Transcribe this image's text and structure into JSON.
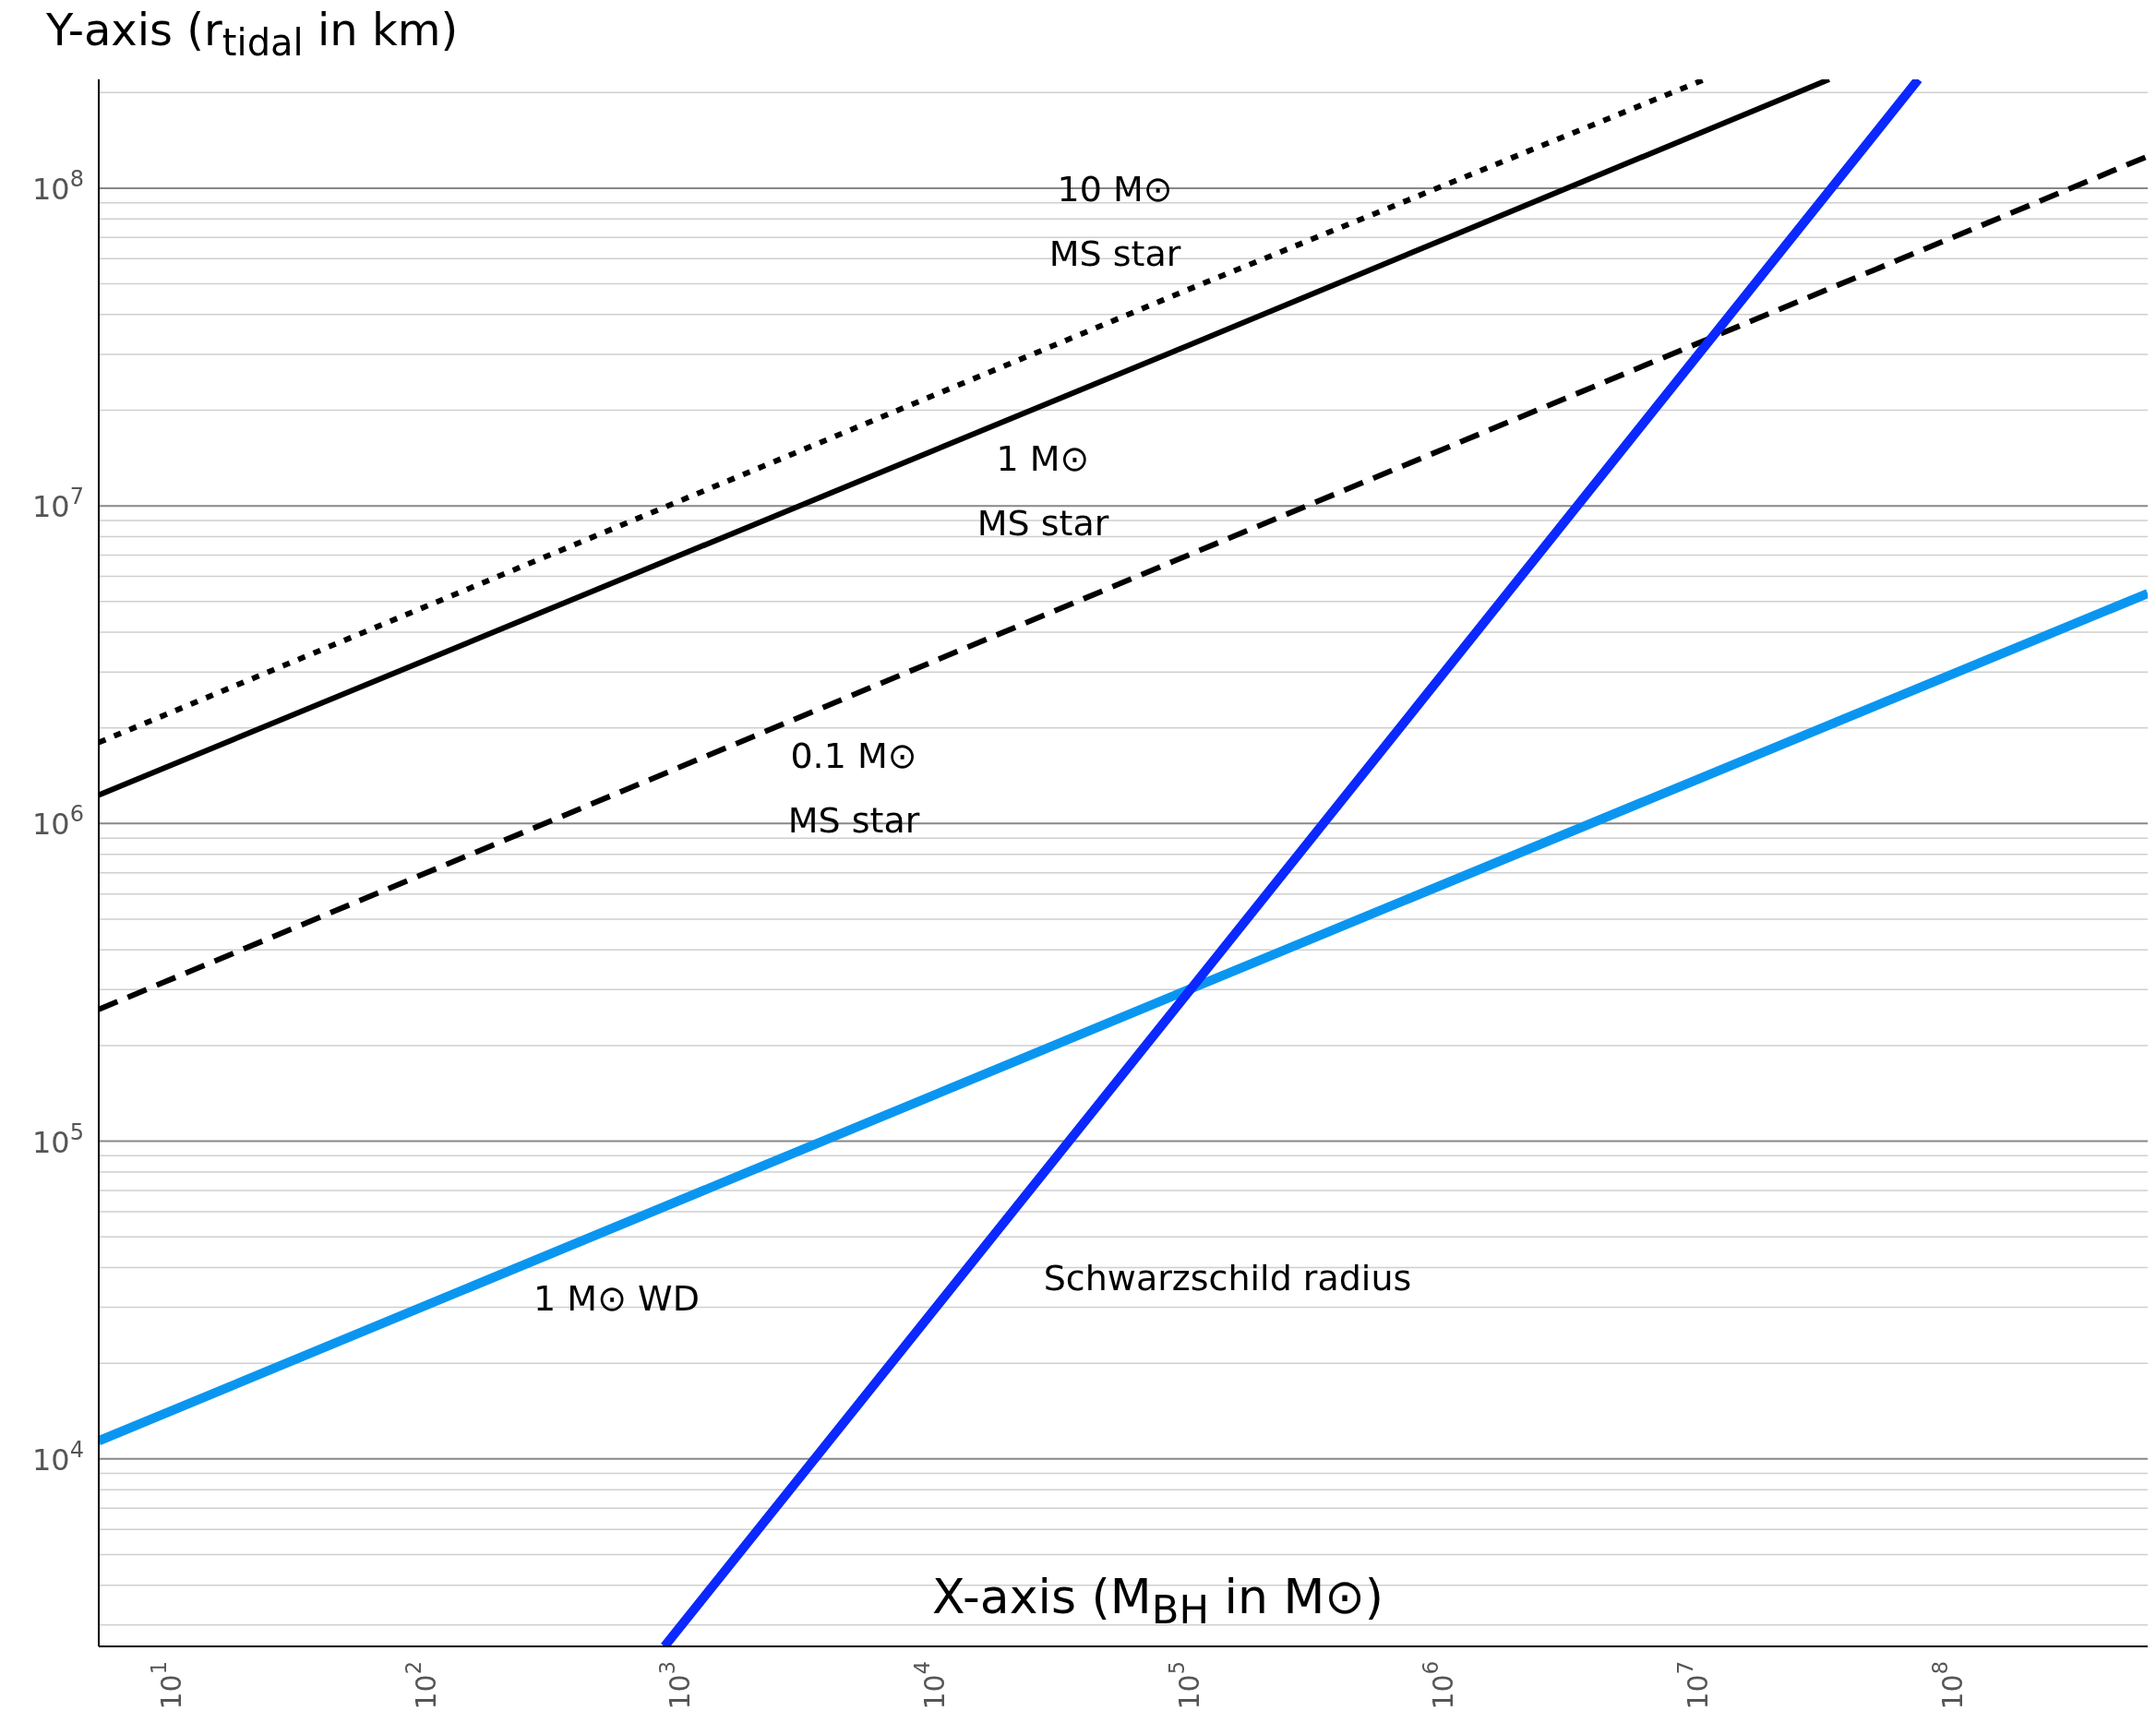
{
  "chart_data": {
    "type": "line",
    "xlabel": "X-axis (M$_{BH}$ in M⊙)",
    "ylabel": "Y-axis (r$_{tidal}$ in km)",
    "log": "xy",
    "grid": "y",
    "xlim": [
      5.2,
      590000000.0
    ],
    "ylim": [
      2570,
      220000000.0
    ],
    "xticks": [
      {
        "value": 10,
        "label": "10$^{1}$"
      },
      {
        "value": 100,
        "label": "10$^{2}$"
      },
      {
        "value": 1000,
        "label": "10$^{3}$"
      },
      {
        "value": 10000,
        "label": "10$^{4}$"
      },
      {
        "value": 100000,
        "label": "10$^{5}$"
      },
      {
        "value": 1000000,
        "label": "10$^{6}$"
      },
      {
        "value": 10000000,
        "label": "10$^{7}$"
      },
      {
        "value": 100000000,
        "label": "10$^{8}$"
      }
    ],
    "yticks": [
      {
        "value": 3000,
        "label": null
      },
      {
        "value": 4000,
        "label": null
      },
      {
        "value": 5000,
        "label": null
      },
      {
        "value": 6000,
        "label": null
      },
      {
        "value": 7000,
        "label": null
      },
      {
        "value": 8000,
        "label": null
      },
      {
        "value": 9000,
        "label": null
      },
      {
        "value": 10000,
        "label": "10$^{4}$"
      },
      {
        "value": 20000,
        "label": null
      },
      {
        "value": 30000,
        "label": null
      },
      {
        "value": 40000,
        "label": null
      },
      {
        "value": 50000,
        "label": null
      },
      {
        "value": 60000,
        "label": null
      },
      {
        "value": 70000,
        "label": null
      },
      {
        "value": 80000,
        "label": null
      },
      {
        "value": 90000,
        "label": null
      },
      {
        "value": 100000,
        "label": "10$^{5}$"
      },
      {
        "value": 200000,
        "label": null
      },
      {
        "value": 300000,
        "label": null
      },
      {
        "value": 400000,
        "label": null
      },
      {
        "value": 500000,
        "label": null
      },
      {
        "value": 600000,
        "label": null
      },
      {
        "value": 700000,
        "label": null
      },
      {
        "value": 800000,
        "label": null
      },
      {
        "value": 900000,
        "label": null
      },
      {
        "value": 1000000,
        "label": "10$^{6}$"
      },
      {
        "value": 2000000,
        "label": null
      },
      {
        "value": 3000000,
        "label": null
      },
      {
        "value": 4000000,
        "label": null
      },
      {
        "value": 5000000,
        "label": null
      },
      {
        "value": 6000000,
        "label": null
      },
      {
        "value": 7000000,
        "label": null
      },
      {
        "value": 8000000,
        "label": null
      },
      {
        "value": 9000000,
        "label": null
      },
      {
        "value": 10000000,
        "label": "10$^{7}$"
      },
      {
        "value": 20000000,
        "label": null
      },
      {
        "value": 30000000,
        "label": null
      },
      {
        "value": 40000000,
        "label": null
      },
      {
        "value": 50000000,
        "label": null
      },
      {
        "value": 60000000,
        "label": null
      },
      {
        "value": 70000000,
        "label": null
      },
      {
        "value": 80000000,
        "label": null
      },
      {
        "value": 90000000,
        "label": null
      },
      {
        "value": 100000000,
        "label": "10$^{8}$"
      },
      {
        "value": 200000000,
        "label": null
      }
    ],
    "series": [
      {
        "name": "10 M⊙\nMS star",
        "color": "#000000",
        "line_style": "dotted",
        "x": [
          5.2,
          100000,
          10700000
        ],
        "values": [
          1800000,
          48000000,
          220000000
        ]
      },
      {
        "name": "1 M⊙\nMS star",
        "color": "#000000",
        "line_style": "solid",
        "x": [
          5.2,
          100000,
          33000000
        ],
        "values": [
          1230000,
          32000000,
          220000000
        ]
      },
      {
        "name": "0.1 M⊙\nMS star",
        "color": "#000000",
        "line_style": "dashed",
        "x": [
          5.2,
          100000,
          590000000
        ],
        "values": [
          260000,
          7000000,
          126000000
        ]
      },
      {
        "name": "1 M⊙ WD",
        "color": "#0a96f0",
        "line_style": "solid",
        "x": [
          5.2,
          100000,
          590000000
        ],
        "values": [
          11400,
          300000,
          5300000
        ]
      },
      {
        "name": "Schwarzschild radius",
        "color": "#0a28ff",
        "line_style": "solid",
        "x": [
          871,
          100000,
          74000000
        ],
        "values": [
          2570,
          295000,
          220000000
        ]
      }
    ]
  }
}
